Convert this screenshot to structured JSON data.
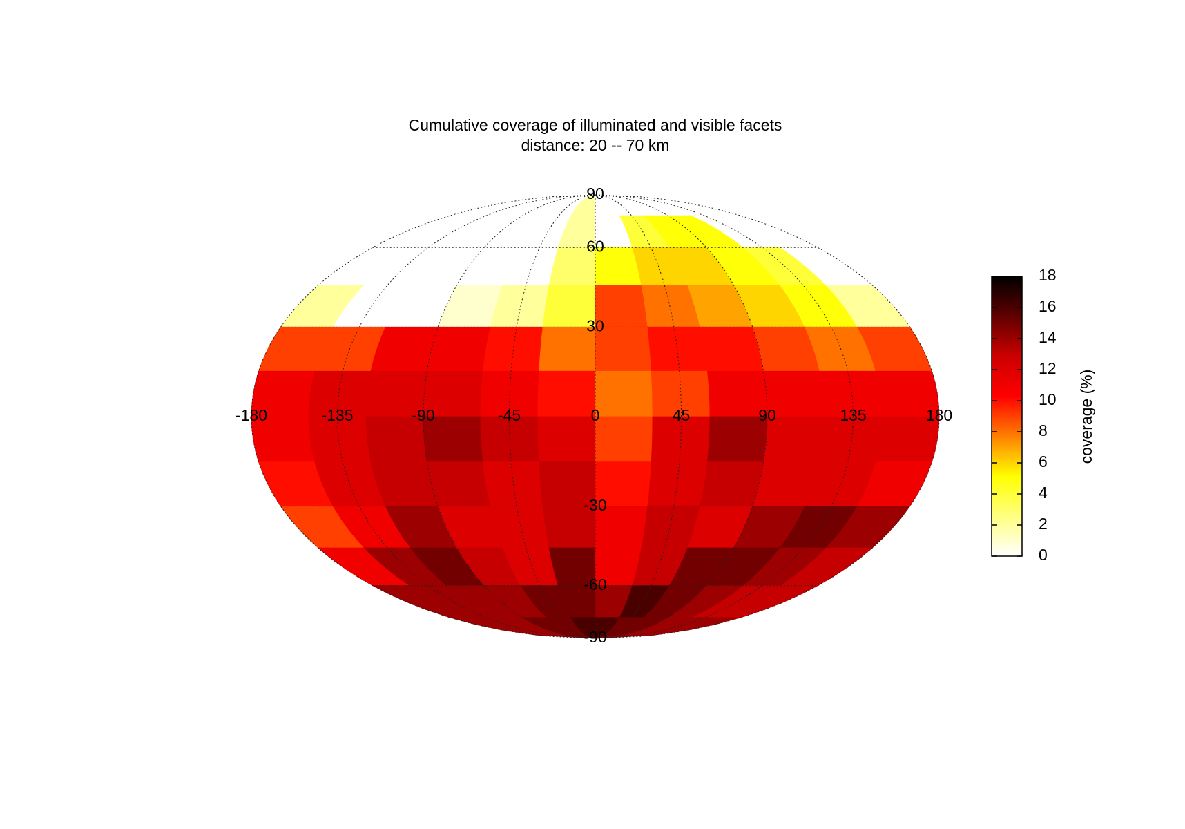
{
  "chart_data": {
    "type": "heatmap",
    "projection": "mollweide",
    "title": "Cumulative coverage of illuminated and visible facets",
    "subtitle": "distance: 20 -- 70 km",
    "lon_edges": [
      -180,
      -150,
      -120,
      -90,
      -60,
      -30,
      0,
      30,
      60,
      90,
      120,
      150,
      180
    ],
    "lat_edges": [
      90,
      75,
      60,
      45,
      30,
      15,
      0,
      -15,
      -30,
      -45,
      -60,
      -75,
      -90
    ],
    "values": [
      [
        0,
        0,
        0,
        0,
        0,
        2,
        0,
        0,
        0,
        0,
        0,
        0
      ],
      [
        0,
        0,
        0,
        0,
        0,
        2,
        0,
        4,
        5,
        5,
        0,
        0
      ],
      [
        0,
        0,
        0,
        0,
        0,
        3,
        5,
        6,
        6,
        5,
        4,
        0
      ],
      [
        2,
        0,
        0,
        1,
        2,
        4,
        9,
        8,
        7,
        6,
        5,
        2
      ],
      [
        9,
        9,
        11,
        11,
        10,
        8,
        9,
        10,
        10,
        9,
        8,
        9
      ],
      [
        11,
        12,
        12,
        12,
        11,
        10,
        8,
        9,
        11,
        11,
        11,
        11
      ],
      [
        11,
        12,
        13,
        14,
        13,
        12,
        9,
        12,
        14,
        12,
        12,
        12
      ],
      [
        10,
        12,
        13,
        13,
        12,
        13,
        10,
        12,
        13,
        12,
        12,
        11
      ],
      [
        9,
        11,
        14,
        12,
        12,
        13,
        11,
        13,
        12,
        14,
        15,
        14
      ],
      [
        11,
        14,
        15,
        13,
        12,
        15,
        11,
        13,
        15,
        15,
        14,
        13
      ],
      [
        14,
        14,
        14,
        14,
        15,
        15,
        14,
        16,
        15,
        14,
        13,
        13
      ],
      [
        14,
        14,
        14,
        15,
        15,
        16,
        16,
        15,
        15,
        14,
        14,
        14
      ]
    ],
    "xlim": [
      -180,
      180
    ],
    "xticks": [
      -180,
      -135,
      -90,
      -45,
      0,
      45,
      90,
      135,
      180
    ],
    "ylim": [
      -90,
      90
    ],
    "yticks": [
      90,
      60,
      30,
      -30,
      -60,
      -90
    ],
    "grid": true,
    "clim": [
      0,
      18
    ],
    "cticks": [
      0,
      2,
      4,
      6,
      8,
      10,
      12,
      14,
      16,
      18
    ],
    "colorbar_label": "coverage (%)",
    "colormap": [
      "#ffffff",
      "#ffff80",
      "#ffff00",
      "#ff8000",
      "#ff0000",
      "#cc0000",
      "#600000",
      "#000000"
    ]
  }
}
